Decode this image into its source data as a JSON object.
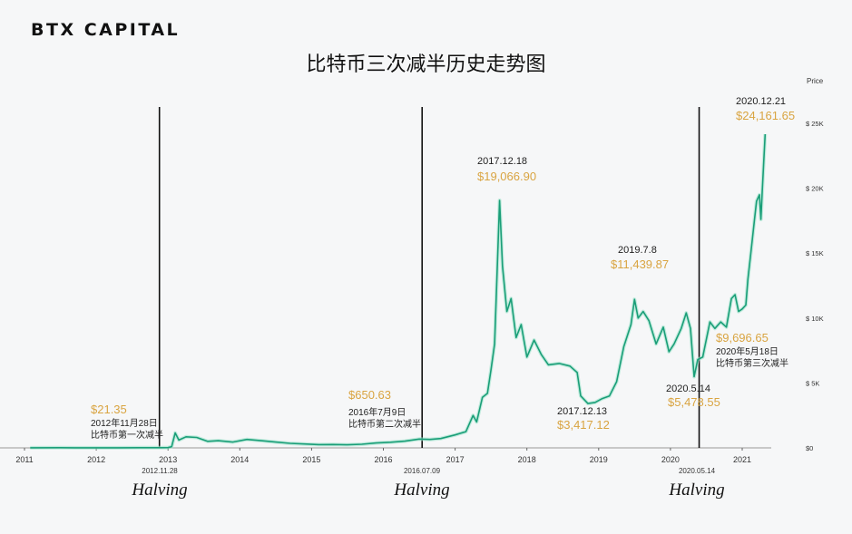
{
  "logo": "BTX CAPITAL",
  "chart_data": {
    "type": "line",
    "title": "比特币三次减半历史走势图",
    "ylabel": "Price",
    "ylim": [
      0,
      25000
    ],
    "y_ticks": [
      "$0",
      "$ 5K",
      "$ 10K",
      "$ 15K",
      "$ 20K",
      "$ 25K"
    ],
    "y_tick_values": [
      0,
      5000,
      10000,
      15000,
      20000,
      25000
    ],
    "x_ticks": [
      "2011",
      "2012",
      "2013",
      "2014",
      "2015",
      "2016",
      "2017",
      "2018",
      "2019",
      "2020",
      "2021"
    ],
    "xlim": [
      2011,
      2021.4
    ],
    "y_axis_position": "right",
    "grid": false,
    "line_color": "#1a9e78",
    "annotation_color": "#d9a441",
    "series": [
      {
        "points": [
          [
            2011.08,
            5
          ],
          [
            2011.5,
            15
          ],
          [
            2011.7,
            8
          ],
          [
            2012.0,
            6
          ],
          [
            2012.3,
            7
          ],
          [
            2012.6,
            11
          ],
          [
            2012.9,
            13
          ],
          [
            2013.0,
            20
          ],
          [
            2013.05,
            100
          ],
          [
            2013.1,
            1150
          ],
          [
            2013.15,
            600
          ],
          [
            2013.25,
            850
          ],
          [
            2013.4,
            800
          ],
          [
            2013.55,
            500
          ],
          [
            2013.7,
            550
          ],
          [
            2013.9,
            450
          ],
          [
            2014.1,
            650
          ],
          [
            2014.3,
            550
          ],
          [
            2014.5,
            450
          ],
          [
            2014.7,
            350
          ],
          [
            2014.9,
            300
          ],
          [
            2015.1,
            250
          ],
          [
            2015.3,
            260
          ],
          [
            2015.5,
            240
          ],
          [
            2015.7,
            280
          ],
          [
            2015.9,
            380
          ],
          [
            2016.1,
            430
          ],
          [
            2016.3,
            520
          ],
          [
            2016.5,
            680
          ],
          [
            2016.65,
            650
          ],
          [
            2016.8,
            720
          ],
          [
            2017.0,
            1000
          ],
          [
            2017.15,
            1250
          ],
          [
            2017.25,
            2500
          ],
          [
            2017.3,
            2000
          ],
          [
            2017.38,
            3900
          ],
          [
            2017.45,
            4200
          ],
          [
            2017.5,
            6000
          ],
          [
            2017.55,
            8000
          ],
          [
            2017.6,
            16000
          ],
          [
            2017.62,
            19066.9
          ],
          [
            2017.66,
            14000
          ],
          [
            2017.72,
            10500
          ],
          [
            2017.78,
            11500
          ],
          [
            2017.85,
            8500
          ],
          [
            2017.92,
            9500
          ],
          [
            2018.0,
            7000
          ],
          [
            2018.1,
            8300
          ],
          [
            2018.2,
            7200
          ],
          [
            2018.3,
            6400
          ],
          [
            2018.45,
            6500
          ],
          [
            2018.6,
            6300
          ],
          [
            2018.7,
            5800
          ],
          [
            2018.75,
            4000
          ],
          [
            2018.85,
            3417.12
          ],
          [
            2018.95,
            3500
          ],
          [
            2019.05,
            3800
          ],
          [
            2019.15,
            4000
          ],
          [
            2019.25,
            5100
          ],
          [
            2019.35,
            7800
          ],
          [
            2019.45,
            9500
          ],
          [
            2019.5,
            11439.87
          ],
          [
            2019.55,
            10000
          ],
          [
            2019.62,
            10500
          ],
          [
            2019.7,
            9800
          ],
          [
            2019.8,
            8000
          ],
          [
            2019.9,
            9300
          ],
          [
            2019.98,
            7400
          ],
          [
            2020.05,
            8000
          ],
          [
            2020.15,
            9200
          ],
          [
            2020.22,
            10400
          ],
          [
            2020.28,
            9200
          ],
          [
            2020.33,
            5478.55
          ],
          [
            2020.38,
            6800
          ],
          [
            2020.45,
            7000
          ],
          [
            2020.55,
            9696.65
          ],
          [
            2020.62,
            9200
          ],
          [
            2020.7,
            9700
          ],
          [
            2020.78,
            9300
          ],
          [
            2020.85,
            11500
          ],
          [
            2020.9,
            11800
          ],
          [
            2020.95,
            10500
          ],
          [
            2021.0,
            10700
          ],
          [
            2021.05,
            11000
          ],
          [
            2021.08,
            13000
          ],
          [
            2021.12,
            15000
          ],
          [
            2021.17,
            17500
          ],
          [
            2021.2,
            19000
          ],
          [
            2021.24,
            19500
          ],
          [
            2021.26,
            17600
          ],
          [
            2021.28,
            19800
          ],
          [
            2021.3,
            22000
          ],
          [
            2021.32,
            24161.65
          ]
        ]
      }
    ],
    "halvings": [
      {
        "date": "2012.11.28",
        "x": 2012.88,
        "label": "Halving"
      },
      {
        "date": "2016.07.09",
        "x": 2016.54,
        "label": "Halving"
      },
      {
        "date": "2020.05.14",
        "x": 2020.4,
        "label": "Halving"
      }
    ],
    "annotations": [
      {
        "price": "$21.35",
        "date": "2012年11月28日",
        "note": "比特币第一次减半"
      },
      {
        "price": "$650.63",
        "date": "2016年7月9日",
        "note": "比特币第二次减半"
      },
      {
        "date": "2017.12.18",
        "price": "$19,066.90"
      },
      {
        "date": "2017.12.13",
        "price": "$3,417.12"
      },
      {
        "date": "2019.7.8",
        "price": "$11,439.87"
      },
      {
        "date": "2020.5.14",
        "price": "$5,478.55"
      },
      {
        "price": "$9,696.65",
        "date": "2020年5月18日",
        "note": "比特币第三次减半"
      },
      {
        "date": "2020.12.21",
        "price": "$24,161.65"
      }
    ]
  }
}
